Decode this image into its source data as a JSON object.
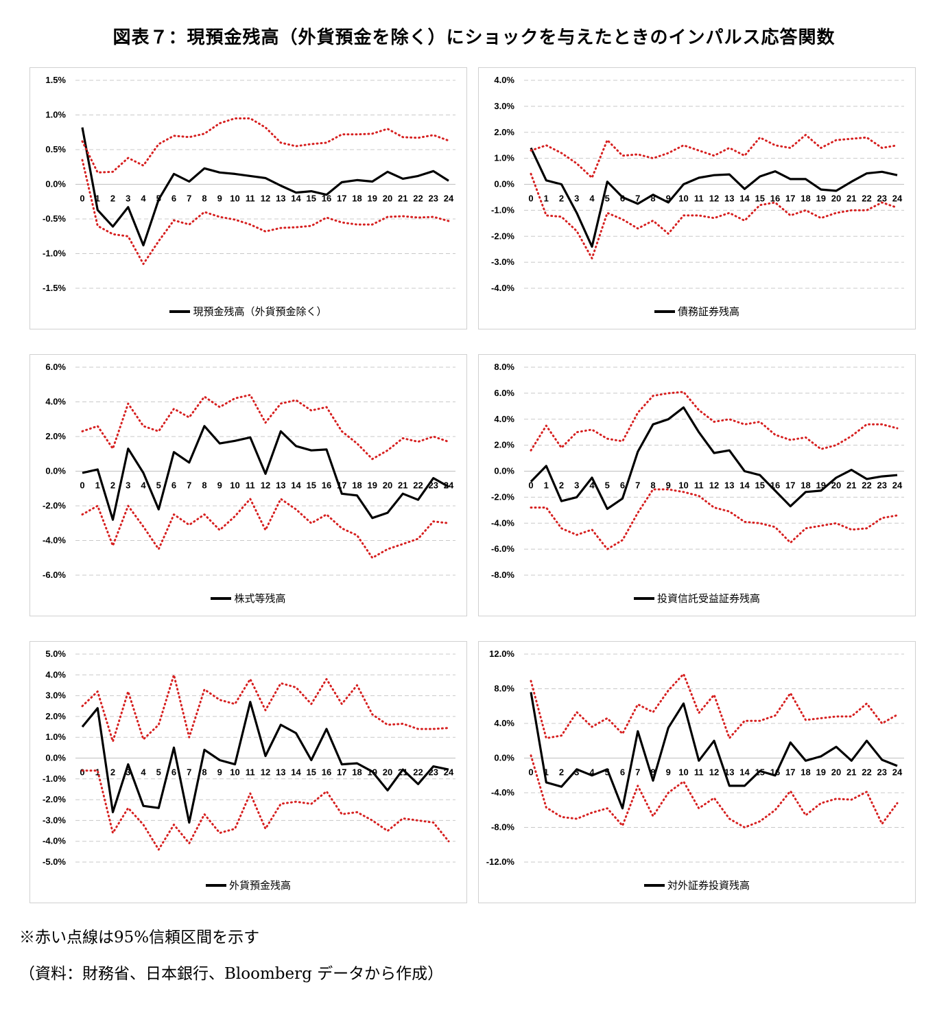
{
  "title": "図表７：現預金残高（外貨預金を除く）にショックを与えたときのインパルス応答関数",
  "note": "※赤い点線は95%信頼区間を示す",
  "source": "（資料：財務省、日本銀行、Bloomberg データから作成）",
  "colors": {
    "response": "#000000",
    "band": "#d62020",
    "grid": "#c8c8c8"
  },
  "chart_data": [
    {
      "type": "line",
      "legend": "現預金残高（外貨預金除く）",
      "x": [
        0,
        1,
        2,
        3,
        4,
        5,
        6,
        7,
        8,
        9,
        10,
        11,
        12,
        13,
        14,
        15,
        16,
        17,
        18,
        19,
        20,
        21,
        22,
        23,
        24
      ],
      "yticks": [
        1.5,
        1.0,
        0.5,
        0.0,
        -0.5,
        -1.0,
        -1.5
      ],
      "ytick_labels": [
        "1.5%",
        "1.0%",
        "0.5%",
        "0.0%",
        "-0.5%",
        "-1.0%",
        "-1.5%"
      ],
      "ylim": [
        -1.5,
        1.5
      ],
      "series": [
        {
          "role": "response",
          "values": [
            0.82,
            -0.37,
            -0.61,
            -0.33,
            -0.88,
            -0.22,
            0.15,
            0.04,
            0.23,
            0.17,
            0.15,
            0.12,
            0.09,
            -0.02,
            -0.12,
            -0.1,
            -0.15,
            0.03,
            0.06,
            0.04,
            0.18,
            0.08,
            0.12,
            0.19,
            0.05
          ]
        },
        {
          "role": "upper",
          "values": [
            0.62,
            0.17,
            0.18,
            0.38,
            0.27,
            0.58,
            0.7,
            0.68,
            0.73,
            0.88,
            0.95,
            0.95,
            0.82,
            0.6,
            0.55,
            0.58,
            0.6,
            0.72,
            0.72,
            0.73,
            0.8,
            0.68,
            0.67,
            0.71,
            0.63
          ]
        },
        {
          "role": "lower",
          "values": [
            0.35,
            -0.6,
            -0.72,
            -0.75,
            -1.15,
            -0.82,
            -0.52,
            -0.58,
            -0.4,
            -0.47,
            -0.51,
            -0.58,
            -0.68,
            -0.63,
            -0.62,
            -0.6,
            -0.48,
            -0.55,
            -0.58,
            -0.58,
            -0.47,
            -0.46,
            -0.48,
            -0.47,
            -0.53
          ]
        }
      ]
    },
    {
      "type": "line",
      "legend": "債務証券残高",
      "x": [
        0,
        1,
        2,
        3,
        4,
        5,
        6,
        7,
        8,
        9,
        10,
        11,
        12,
        13,
        14,
        15,
        16,
        17,
        18,
        19,
        20,
        21,
        22,
        23,
        24
      ],
      "yticks": [
        4.0,
        3.0,
        2.0,
        1.0,
        0.0,
        -1.0,
        -2.0,
        -3.0,
        -4.0
      ],
      "ytick_labels": [
        "4.0%",
        "3.0%",
        "2.0%",
        "1.0%",
        "0.0%",
        "-1.0%",
        "-2.0%",
        "-3.0%",
        "-4.0%"
      ],
      "ylim": [
        -4.0,
        4.0
      ],
      "series": [
        {
          "role": "response",
          "values": [
            1.4,
            0.15,
            0.0,
            -1.1,
            -2.4,
            0.1,
            -0.5,
            -0.75,
            -0.4,
            -0.7,
            0.0,
            0.25,
            0.35,
            0.38,
            -0.18,
            0.3,
            0.5,
            0.2,
            0.2,
            -0.2,
            -0.25,
            0.1,
            0.42,
            0.48,
            0.35
          ]
        },
        {
          "role": "upper",
          "values": [
            1.3,
            1.5,
            1.2,
            0.8,
            0.25,
            1.7,
            1.1,
            1.15,
            1.0,
            1.2,
            1.5,
            1.3,
            1.1,
            1.4,
            1.1,
            1.8,
            1.5,
            1.4,
            1.9,
            1.4,
            1.7,
            1.75,
            1.8,
            1.4,
            1.5
          ]
        },
        {
          "role": "lower",
          "values": [
            0.4,
            -1.2,
            -1.25,
            -1.8,
            -2.85,
            -1.1,
            -1.35,
            -1.7,
            -1.4,
            -1.9,
            -1.2,
            -1.2,
            -1.3,
            -1.1,
            -1.4,
            -0.8,
            -0.7,
            -1.2,
            -1.0,
            -1.3,
            -1.1,
            -1.0,
            -1.0,
            -0.7,
            -0.9
          ]
        }
      ]
    },
    {
      "type": "line",
      "legend": "株式等残高",
      "x": [
        0,
        1,
        2,
        3,
        4,
        5,
        6,
        7,
        8,
        9,
        10,
        11,
        12,
        13,
        14,
        15,
        16,
        17,
        18,
        19,
        20,
        21,
        22,
        23,
        24
      ],
      "yticks": [
        6.0,
        4.0,
        2.0,
        0.0,
        -2.0,
        -4.0,
        -6.0
      ],
      "ytick_labels": [
        "6.0%",
        "4.0%",
        "2.0%",
        "0.0%",
        "-2.0%",
        "-4.0%",
        "-6.0%"
      ],
      "ylim": [
        -6.0,
        6.0
      ],
      "series": [
        {
          "role": "response",
          "values": [
            -0.1,
            0.1,
            -2.8,
            1.3,
            -0.1,
            -2.2,
            1.1,
            0.5,
            2.6,
            1.6,
            1.75,
            1.95,
            -0.15,
            2.3,
            1.45,
            1.2,
            1.25,
            -1.3,
            -1.4,
            -2.7,
            -2.4,
            -1.3,
            -1.65,
            -0.4,
            -0.9
          ]
        },
        {
          "role": "upper",
          "values": [
            2.3,
            2.6,
            1.3,
            3.9,
            2.6,
            2.3,
            3.6,
            3.1,
            4.3,
            3.7,
            4.2,
            4.4,
            2.8,
            3.9,
            4.1,
            3.5,
            3.7,
            2.3,
            1.6,
            0.7,
            1.2,
            1.9,
            1.7,
            2.0,
            1.7
          ]
        },
        {
          "role": "lower",
          "values": [
            -2.5,
            -2.0,
            -4.3,
            -2.0,
            -3.2,
            -4.5,
            -2.5,
            -3.1,
            -2.5,
            -3.4,
            -2.6,
            -1.6,
            -3.4,
            -1.6,
            -2.2,
            -3.0,
            -2.5,
            -3.3,
            -3.7,
            -5.0,
            -4.5,
            -4.2,
            -3.9,
            -2.9,
            -3.0
          ]
        }
      ]
    },
    {
      "type": "line",
      "legend": "投資信託受益証券残高",
      "x": [
        0,
        1,
        2,
        3,
        4,
        5,
        6,
        7,
        8,
        9,
        10,
        11,
        12,
        13,
        14,
        15,
        16,
        17,
        18,
        19,
        20,
        21,
        22,
        23,
        24
      ],
      "yticks": [
        8.0,
        6.0,
        4.0,
        2.0,
        0.0,
        -2.0,
        -4.0,
        -6.0,
        -8.0
      ],
      "ytick_labels": [
        "8.0%",
        "6.0%",
        "4.0%",
        "2.0%",
        "0.0%",
        "-2.0%",
        "-4.0%",
        "-6.0%",
        "-8.0%"
      ],
      "ylim": [
        -8.0,
        8.0
      ],
      "series": [
        {
          "role": "response",
          "values": [
            -0.8,
            0.4,
            -2.3,
            -2.0,
            -0.5,
            -2.9,
            -2.1,
            1.5,
            3.6,
            4.0,
            4.9,
            3.0,
            1.4,
            1.6,
            0.0,
            -0.3,
            -1.5,
            -2.7,
            -1.6,
            -1.5,
            -0.5,
            0.1,
            -0.6,
            -0.4,
            -0.3
          ]
        },
        {
          "role": "upper",
          "values": [
            1.6,
            3.5,
            1.8,
            3.0,
            3.2,
            2.5,
            2.3,
            4.5,
            5.8,
            6.0,
            6.1,
            4.7,
            3.8,
            4.0,
            3.6,
            3.8,
            2.8,
            2.4,
            2.6,
            1.7,
            2.0,
            2.7,
            3.6,
            3.6,
            3.3
          ]
        },
        {
          "role": "lower",
          "values": [
            -2.8,
            -2.8,
            -4.4,
            -4.9,
            -4.5,
            -6.0,
            -5.3,
            -3.2,
            -1.4,
            -1.4,
            -1.6,
            -1.9,
            -2.8,
            -3.1,
            -3.9,
            -4.0,
            -4.3,
            -5.5,
            -4.4,
            -4.2,
            -4.0,
            -4.5,
            -4.4,
            -3.6,
            -3.4
          ]
        }
      ]
    },
    {
      "type": "line",
      "legend": "外貨預金残高",
      "x": [
        0,
        1,
        2,
        3,
        4,
        5,
        6,
        7,
        8,
        9,
        10,
        11,
        12,
        13,
        14,
        15,
        16,
        17,
        18,
        19,
        20,
        21,
        22,
        23,
        24
      ],
      "yticks": [
        5.0,
        4.0,
        3.0,
        2.0,
        1.0,
        0.0,
        -1.0,
        -2.0,
        -3.0,
        -4.0,
        -5.0
      ],
      "ytick_labels": [
        "5.0%",
        "4.0%",
        "3.0%",
        "2.0%",
        "1.0%",
        "0.0%",
        "-1.0%",
        "-2.0%",
        "-3.0%",
        "-4.0%",
        "-5.0%"
      ],
      "ylim": [
        -5.0,
        5.0
      ],
      "series": [
        {
          "role": "response",
          "values": [
            1.5,
            2.4,
            -2.6,
            -0.3,
            -2.3,
            -2.4,
            0.5,
            -3.1,
            0.4,
            -0.1,
            -0.3,
            2.7,
            0.1,
            1.6,
            1.2,
            -0.1,
            1.4,
            -0.3,
            -0.25,
            -0.65,
            -1.55,
            -0.55,
            -1.25,
            -0.4,
            -0.55
          ]
        },
        {
          "role": "upper",
          "values": [
            2.5,
            3.2,
            0.8,
            3.2,
            0.9,
            1.6,
            4.0,
            1.0,
            3.3,
            2.8,
            2.6,
            3.8,
            2.3,
            3.6,
            3.4,
            2.6,
            3.8,
            2.6,
            3.5,
            2.1,
            1.6,
            1.65,
            1.4,
            1.4,
            1.45
          ]
        },
        {
          "role": "lower",
          "values": [
            -0.6,
            -0.6,
            -3.6,
            -2.4,
            -3.2,
            -4.4,
            -3.2,
            -4.1,
            -2.7,
            -3.6,
            -3.4,
            -1.7,
            -3.4,
            -2.2,
            -2.1,
            -2.2,
            -1.6,
            -2.7,
            -2.6,
            -3.0,
            -3.5,
            -2.9,
            -3.0,
            -3.1,
            -4.0
          ]
        }
      ]
    },
    {
      "type": "line",
      "legend": "対外証券投資残高",
      "x": [
        0,
        1,
        2,
        3,
        4,
        5,
        6,
        7,
        8,
        9,
        10,
        11,
        12,
        13,
        14,
        15,
        16,
        17,
        18,
        19,
        20,
        21,
        22,
        23,
        24
      ],
      "yticks": [
        12.0,
        8.0,
        4.0,
        0.0,
        -4.0,
        -8.0,
        -12.0
      ],
      "ytick_labels": [
        "12.0%",
        "8.0%",
        "4.0%",
        "0.0%",
        "-4.0%",
        "-8.0%",
        "-12.0%"
      ],
      "ylim": [
        -12.0,
        12.0
      ],
      "series": [
        {
          "role": "response",
          "values": [
            7.6,
            -2.8,
            -3.3,
            -1.3,
            -2.0,
            -1.3,
            -5.8,
            3.1,
            -2.6,
            3.5,
            6.3,
            -0.3,
            2.0,
            -3.2,
            -3.2,
            -1.5,
            -2.0,
            1.8,
            -0.3,
            0.2,
            1.3,
            -0.3,
            2.0,
            -0.2,
            -0.9
          ]
        },
        {
          "role": "upper",
          "values": [
            8.9,
            2.3,
            2.6,
            5.3,
            3.6,
            4.6,
            2.8,
            6.2,
            5.3,
            7.8,
            9.7,
            5.2,
            7.3,
            2.3,
            4.3,
            4.3,
            4.9,
            7.5,
            4.4,
            4.6,
            4.8,
            4.8,
            6.3,
            4.0,
            5.0
          ]
        },
        {
          "role": "lower",
          "values": [
            0.3,
            -5.7,
            -6.8,
            -7.0,
            -6.3,
            -5.8,
            -7.8,
            -3.2,
            -6.7,
            -4.0,
            -2.7,
            -5.8,
            -4.6,
            -7.0,
            -8.0,
            -7.3,
            -6.0,
            -3.8,
            -6.6,
            -5.2,
            -4.7,
            -4.8,
            -3.9,
            -7.6,
            -5.2
          ]
        }
      ]
    }
  ]
}
